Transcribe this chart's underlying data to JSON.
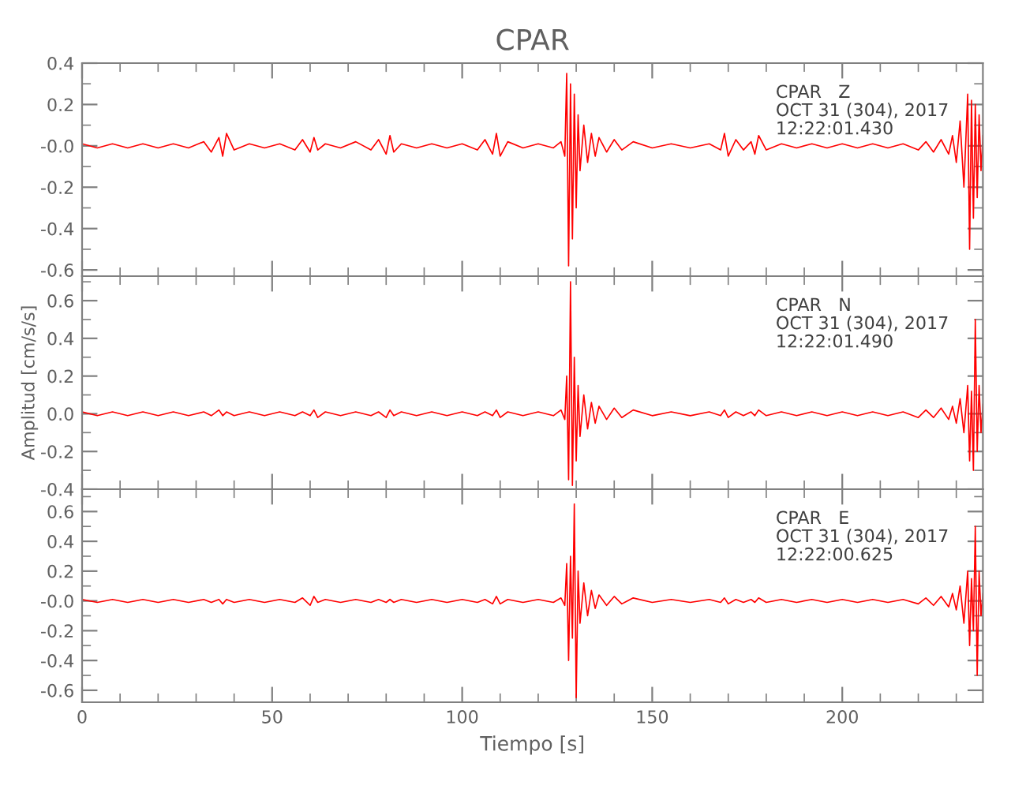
{
  "chart_data": [
    {
      "type": "line",
      "title": "CPAR",
      "tick_labels": "y",
      "xlim": [
        0,
        237
      ],
      "xticks": [
        0,
        50,
        100,
        150,
        200
      ],
      "ylim": [
        -0.63,
        0.4
      ],
      "yticks": [
        0.4,
        0.2,
        {
          "value": 0,
          "label": "-0.0"
        },
        {
          "value": -0.2,
          "label": "-0.2"
        },
        {
          "value": -0.4,
          "label": "-0.4"
        },
        {
          "value": -0.6,
          "label": "-0.6"
        }
      ],
      "annotations": [
        "CPAR   Z\nOCT 31 (304), 2017\n12:22:01.430"
      ],
      "grid": false,
      "marker": "none",
      "line_style": "solid",
      "x": [
        0,
        4,
        8,
        12,
        16,
        20,
        24,
        28,
        32,
        34,
        36,
        37,
        38,
        40,
        44,
        48,
        52,
        56,
        58,
        60,
        61,
        62,
        64,
        68,
        72,
        76,
        78,
        80,
        81,
        82,
        84,
        88,
        92,
        96,
        100,
        104,
        106,
        108,
        109,
        110,
        112,
        116,
        120,
        124,
        126,
        127,
        127.5,
        128,
        128.5,
        129,
        129.5,
        130,
        130.5,
        131,
        132,
        133,
        134,
        135,
        136,
        138,
        140,
        142,
        145,
        150,
        155,
        160,
        165,
        168,
        169,
        170,
        172,
        174,
        176,
        177,
        178,
        180,
        184,
        188,
        192,
        196,
        200,
        204,
        208,
        212,
        216,
        220,
        222,
        224,
        226,
        228,
        229,
        230,
        231,
        232,
        233,
        233.5,
        234,
        234.5,
        235,
        235.5,
        236,
        236.5,
        237
      ],
      "series": [
        {
          "color": "#ff0000",
          "values": [
            0.01,
            -0.01,
            0.01,
            -0.01,
            0.01,
            -0.01,
            0.01,
            -0.01,
            0.02,
            -0.03,
            0.04,
            -0.05,
            0.06,
            -0.02,
            0.01,
            -0.01,
            0.01,
            -0.02,
            0.03,
            -0.03,
            0.04,
            -0.02,
            0.01,
            -0.01,
            0.02,
            -0.02,
            0.03,
            -0.04,
            0.05,
            -0.03,
            0.01,
            -0.01,
            0.01,
            -0.01,
            0.01,
            -0.02,
            0.03,
            -0.04,
            0.06,
            -0.05,
            0.02,
            -0.01,
            0.01,
            -0.01,
            0.02,
            -0.05,
            0.35,
            -0.58,
            0.3,
            -0.45,
            0.25,
            -0.3,
            0.15,
            -0.12,
            0.1,
            -0.08,
            0.06,
            -0.05,
            0.04,
            -0.03,
            0.03,
            -0.02,
            0.02,
            -0.01,
            0.01,
            -0.01,
            0.01,
            -0.02,
            0.06,
            -0.05,
            0.03,
            -0.02,
            0.02,
            -0.04,
            0.05,
            -0.02,
            0.01,
            -0.01,
            0.01,
            -0.01,
            0.01,
            -0.01,
            0.01,
            -0.01,
            0.01,
            -0.02,
            0.02,
            -0.03,
            0.03,
            -0.04,
            0.05,
            -0.08,
            0.12,
            -0.2,
            0.25,
            -0.5,
            0.22,
            -0.35,
            0.2,
            -0.25,
            0.15,
            -0.12,
            0.05
          ]
        }
      ]
    },
    {
      "type": "line",
      "ylabel": "Amplitud [cm/s/s]",
      "tick_labels": "y",
      "xlim": [
        0,
        237
      ],
      "xticks": [
        0,
        50,
        100,
        150,
        200
      ],
      "ylim": [
        -0.4,
        0.73
      ],
      "yticks": [
        0.6,
        0.4,
        0.2,
        {
          "value": 0,
          "label": "0.0"
        },
        {
          "value": -0.2,
          "label": "-0.2"
        },
        {
          "value": -0.4,
          "label": "-0.4"
        }
      ],
      "annotations": [
        "CPAR   N\nOCT 31 (304), 2017\n12:22:01.490"
      ],
      "grid": false,
      "marker": "none",
      "line_style": "solid",
      "x": [
        0,
        4,
        8,
        12,
        16,
        20,
        24,
        28,
        32,
        34,
        36,
        37,
        38,
        40,
        44,
        48,
        52,
        56,
        58,
        60,
        61,
        62,
        64,
        68,
        72,
        76,
        78,
        80,
        81,
        82,
        84,
        88,
        92,
        96,
        100,
        104,
        106,
        108,
        109,
        110,
        112,
        116,
        120,
        124,
        126,
        127,
        127.5,
        128,
        128.5,
        129,
        129.5,
        130,
        130.5,
        131,
        132,
        133,
        134,
        135,
        136,
        138,
        140,
        142,
        145,
        150,
        155,
        160,
        165,
        168,
        169,
        170,
        172,
        174,
        176,
        177,
        178,
        180,
        184,
        188,
        192,
        196,
        200,
        204,
        208,
        212,
        216,
        220,
        222,
        224,
        226,
        228,
        229,
        230,
        231,
        232,
        233,
        233.5,
        234,
        234.5,
        235,
        235.5,
        236,
        236.5,
        237
      ],
      "series": [
        {
          "color": "#ff0000",
          "values": [
            0.01,
            -0.01,
            0.01,
            -0.01,
            0.01,
            -0.01,
            0.01,
            -0.01,
            0.01,
            -0.01,
            0.02,
            -0.01,
            0.01,
            -0.01,
            0.01,
            -0.01,
            0.01,
            -0.01,
            0.01,
            -0.01,
            0.02,
            -0.02,
            0.01,
            -0.01,
            0.01,
            -0.01,
            0.01,
            -0.02,
            0.02,
            -0.01,
            0.01,
            -0.01,
            0.01,
            -0.01,
            0.01,
            -0.01,
            0.01,
            -0.01,
            0.02,
            -0.02,
            0.01,
            -0.01,
            0.01,
            -0.01,
            0.02,
            -0.03,
            0.2,
            -0.35,
            0.7,
            -0.38,
            0.3,
            -0.25,
            0.15,
            -0.12,
            0.1,
            -0.08,
            0.06,
            -0.05,
            0.04,
            -0.03,
            0.03,
            -0.02,
            0.02,
            -0.01,
            0.01,
            -0.01,
            0.01,
            -0.01,
            0.02,
            -0.02,
            0.01,
            -0.01,
            0.01,
            -0.01,
            0.02,
            -0.01,
            0.01,
            -0.01,
            0.01,
            -0.01,
            0.01,
            -0.01,
            0.01,
            -0.01,
            0.01,
            -0.02,
            0.02,
            -0.02,
            0.03,
            -0.03,
            0.04,
            -0.05,
            0.08,
            -0.1,
            0.15,
            -0.25,
            0.12,
            -0.3,
            0.5,
            -0.2,
            0.15,
            -0.1,
            0.05
          ]
        }
      ]
    },
    {
      "type": "line",
      "xlabel": "Tiempo [s]",
      "xlim": [
        0,
        237
      ],
      "xticks": [
        0,
        50,
        100,
        150,
        200
      ],
      "ylim": [
        -0.68,
        0.75
      ],
      "yticks": [
        0.6,
        0.4,
        0.2,
        {
          "value": 0,
          "label": "-0.0"
        },
        {
          "value": -0.2,
          "label": "-0.2"
        },
        {
          "value": -0.4,
          "label": "-0.4"
        },
        {
          "value": -0.6,
          "label": "-0.6"
        }
      ],
      "annotations": [
        "CPAR   E\nOCT 31 (304), 2017\n12:22:00.625"
      ],
      "grid": false,
      "marker": "none",
      "line_style": "solid",
      "x": [
        0,
        4,
        8,
        12,
        16,
        20,
        24,
        28,
        32,
        34,
        36,
        37,
        38,
        40,
        44,
        48,
        52,
        56,
        58,
        60,
        61,
        62,
        64,
        68,
        72,
        76,
        78,
        80,
        81,
        82,
        84,
        88,
        92,
        96,
        100,
        104,
        106,
        108,
        109,
        110,
        112,
        116,
        120,
        124,
        126,
        127,
        127.5,
        128,
        128.5,
        129,
        129.5,
        130,
        130.5,
        131,
        132,
        133,
        134,
        135,
        136,
        138,
        140,
        142,
        145,
        150,
        155,
        160,
        165,
        168,
        169,
        170,
        172,
        174,
        176,
        177,
        178,
        180,
        184,
        188,
        192,
        196,
        200,
        204,
        208,
        212,
        216,
        220,
        222,
        224,
        226,
        228,
        229,
        230,
        231,
        232,
        233,
        233.5,
        234,
        234.5,
        235,
        235.5,
        236,
        236.5,
        237
      ],
      "series": [
        {
          "color": "#ff0000",
          "values": [
            0.01,
            -0.01,
            0.01,
            -0.01,
            0.01,
            -0.01,
            0.01,
            -0.01,
            0.01,
            -0.01,
            0.01,
            -0.02,
            0.01,
            -0.01,
            0.01,
            -0.01,
            0.01,
            -0.01,
            0.02,
            -0.03,
            0.03,
            -0.01,
            0.01,
            -0.01,
            0.01,
            -0.01,
            0.01,
            -0.01,
            0.01,
            -0.01,
            0.01,
            -0.01,
            0.01,
            -0.01,
            0.01,
            -0.01,
            0.01,
            -0.02,
            0.03,
            -0.02,
            0.01,
            -0.01,
            0.01,
            -0.01,
            0.02,
            -0.03,
            0.25,
            -0.4,
            0.3,
            -0.25,
            0.65,
            -0.65,
            0.2,
            -0.15,
            0.12,
            -0.1,
            0.07,
            -0.05,
            0.04,
            -0.03,
            0.03,
            -0.02,
            0.02,
            -0.01,
            0.01,
            -0.01,
            0.01,
            -0.01,
            0.02,
            -0.02,
            0.01,
            -0.01,
            0.01,
            -0.01,
            0.02,
            -0.01,
            0.01,
            -0.01,
            0.01,
            -0.01,
            0.01,
            -0.01,
            0.01,
            -0.01,
            0.01,
            -0.02,
            0.02,
            -0.03,
            0.03,
            -0.04,
            0.05,
            -0.06,
            0.1,
            -0.15,
            0.2,
            -0.3,
            0.15,
            -0.2,
            0.5,
            -0.5,
            0.2,
            -0.1,
            0.05
          ]
        }
      ]
    }
  ]
}
